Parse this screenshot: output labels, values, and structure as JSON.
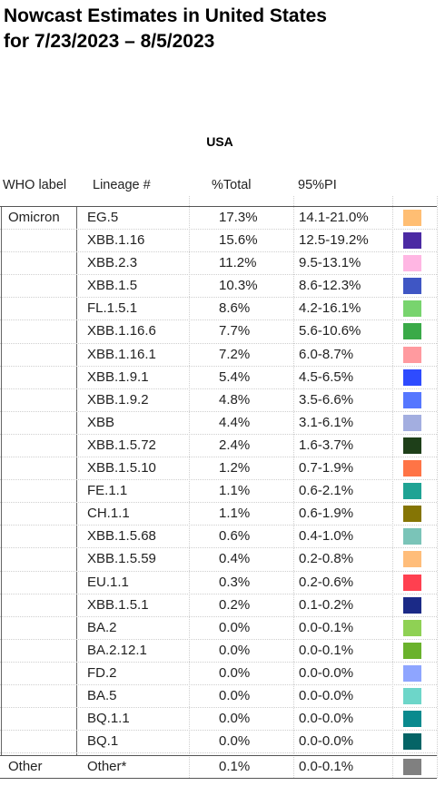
{
  "title_line1": "Nowcast Estimates in United States",
  "title_line2": "for 7/23/2023 – 8/5/2023",
  "region": "USA",
  "headers": {
    "who": "WHO label",
    "lineage": "Lineage #",
    "total": "%Total",
    "pi": "95%PI"
  },
  "groups": {
    "omicron": "Omicron",
    "other": "Other"
  },
  "rows": [
    {
      "lineage": "EG.5",
      "total": "17.3%",
      "pi": "14.1-21.0%",
      "color": "#ffbe73"
    },
    {
      "lineage": "XBB.1.16",
      "total": "15.6%",
      "pi": "12.5-19.2%",
      "color": "#4b2aa3"
    },
    {
      "lineage": "XBB.2.3",
      "total": "11.2%",
      "pi": "9.5-13.1%",
      "color": "#ffb6e3"
    },
    {
      "lineage": "XBB.1.5",
      "total": "10.3%",
      "pi": "8.6-12.3%",
      "color": "#3f56c4"
    },
    {
      "lineage": "FL.1.5.1",
      "total": "8.6%",
      "pi": "4.2-16.1%",
      "color": "#78d46e"
    },
    {
      "lineage": "XBB.1.16.6",
      "total": "7.7%",
      "pi": "5.6-10.6%",
      "color": "#3aaa48"
    },
    {
      "lineage": "XBB.1.16.1",
      "total": "7.2%",
      "pi": "6.0-8.7%",
      "color": "#ff9a9f"
    },
    {
      "lineage": "XBB.1.9.1",
      "total": "5.4%",
      "pi": "4.5-6.5%",
      "color": "#2e4bff"
    },
    {
      "lineage": "XBB.1.9.2",
      "total": "4.8%",
      "pi": "3.5-6.6%",
      "color": "#5577ff"
    },
    {
      "lineage": "XBB",
      "total": "4.4%",
      "pi": "3.1-6.1%",
      "color": "#a3aee0"
    },
    {
      "lineage": "XBB.1.5.72",
      "total": "2.4%",
      "pi": "1.6-3.7%",
      "color": "#1e3f19"
    },
    {
      "lineage": "XBB.1.5.10",
      "total": "1.2%",
      "pi": "0.7-1.9%",
      "color": "#ff7446"
    },
    {
      "lineage": "FE.1.1",
      "total": "1.1%",
      "pi": "0.6-2.1%",
      "color": "#1fa394"
    },
    {
      "lineage": "CH.1.1",
      "total": "1.1%",
      "pi": "0.6-1.9%",
      "color": "#857505"
    },
    {
      "lineage": "XBB.1.5.68",
      "total": "0.6%",
      "pi": "0.4-1.0%",
      "color": "#7ac4b8"
    },
    {
      "lineage": "XBB.1.5.59",
      "total": "0.4%",
      "pi": "0.2-0.8%",
      "color": "#ffbd7a"
    },
    {
      "lineage": "EU.1.1",
      "total": "0.3%",
      "pi": "0.2-0.6%",
      "color": "#ff4050"
    },
    {
      "lineage": "XBB.1.5.1",
      "total": "0.2%",
      "pi": "0.1-0.2%",
      "color": "#1b2a87"
    },
    {
      "lineage": "BA.2",
      "total": "0.0%",
      "pi": "0.0-0.1%",
      "color": "#8fd154"
    },
    {
      "lineage": "BA.2.12.1",
      "total": "0.0%",
      "pi": "0.0-0.1%",
      "color": "#6ab22c"
    },
    {
      "lineage": "FD.2",
      "total": "0.0%",
      "pi": "0.0-0.0%",
      "color": "#8ea5ff"
    },
    {
      "lineage": "BA.5",
      "total": "0.0%",
      "pi": "0.0-0.0%",
      "color": "#6dd6c9"
    },
    {
      "lineage": "BQ.1.1",
      "total": "0.0%",
      "pi": "0.0-0.0%",
      "color": "#0a8a8e"
    },
    {
      "lineage": "BQ.1",
      "total": "0.0%",
      "pi": "0.0-0.0%",
      "color": "#056466"
    }
  ],
  "other_row": {
    "lineage": "Other*",
    "total": "0.1%",
    "pi": "0.0-0.1%",
    "color": "#808080"
  }
}
